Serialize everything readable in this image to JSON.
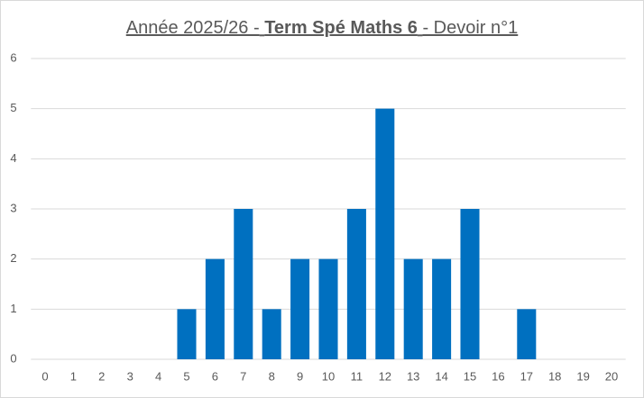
{
  "chart_data": {
    "type": "bar",
    "title_parts": [
      "Année 2025/26 -",
      "Term Spé Maths 6",
      "- Devoir n°1"
    ],
    "categories": [
      "0",
      "1",
      "2",
      "3",
      "4",
      "5",
      "6",
      "7",
      "8",
      "9",
      "10",
      "11",
      "12",
      "13",
      "14",
      "15",
      "16",
      "17",
      "18",
      "19",
      "20"
    ],
    "values": [
      0,
      0,
      0,
      0,
      0,
      1,
      2,
      3,
      1,
      2,
      2,
      3,
      5,
      2,
      2,
      3,
      0,
      1,
      0,
      0,
      0
    ],
    "color": "#0070c0",
    "ylim": [
      0,
      6
    ],
    "yticks": [
      0,
      1,
      2,
      3,
      4,
      5,
      6
    ],
    "grid": true
  }
}
